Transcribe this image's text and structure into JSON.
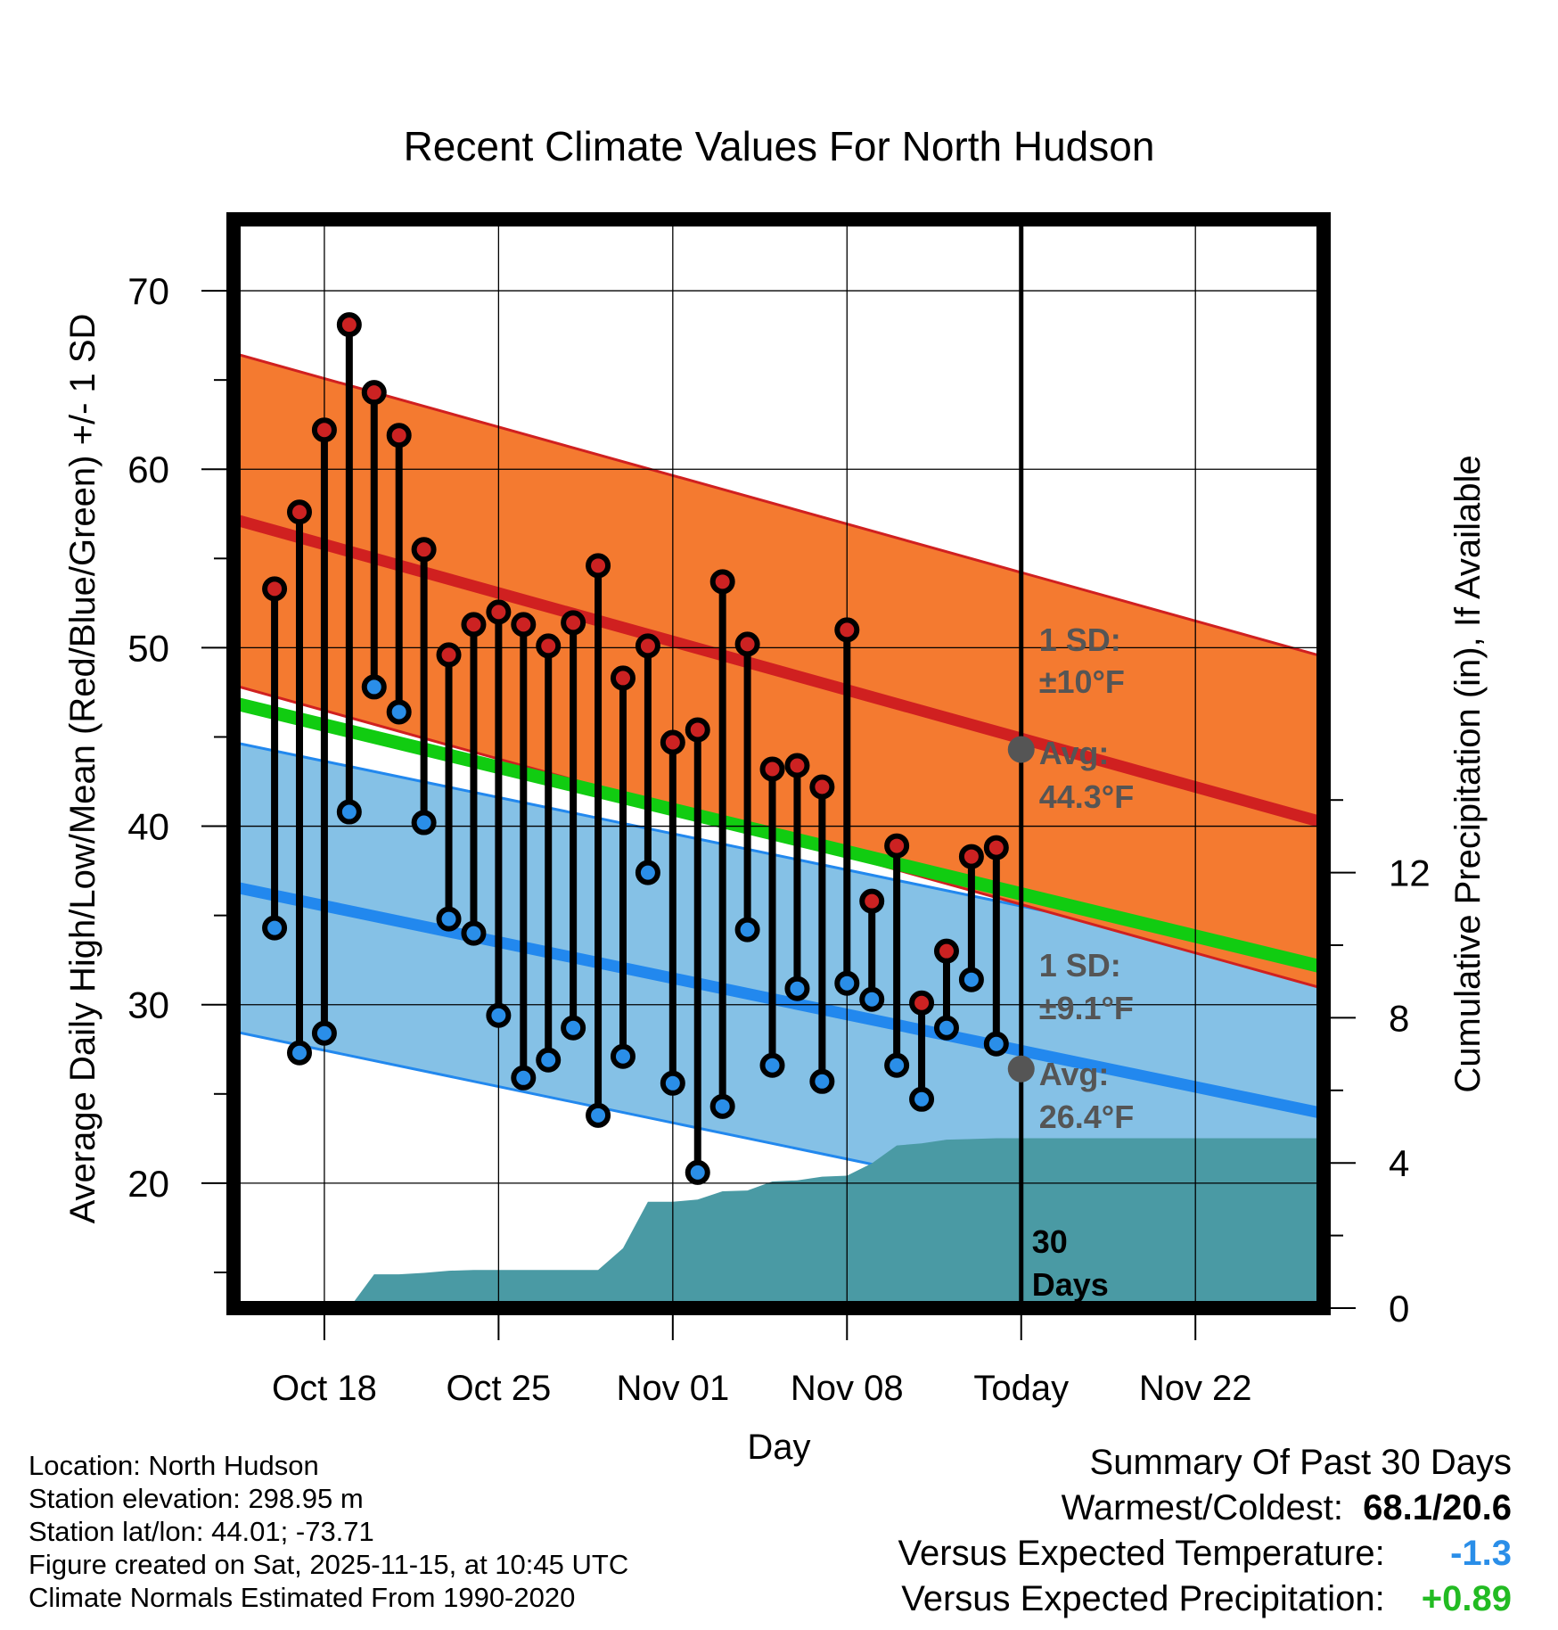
{
  "chart_data": {
    "type": "line",
    "title": "Recent Climate Values For North Hudson",
    "xlabel": "Day",
    "ylabel_left": "Average Daily High/Low/Mean (Red/Blue/Green) +/- 1 SD",
    "ylabel_right": "Cumulative Precipitation (in), If Available",
    "y_left_range": [
      13,
      74
    ],
    "y_right_range": [
      0,
      30
    ],
    "x_range": [
      -0.65,
      43.15
    ],
    "x_ticks": [
      {
        "day": 3,
        "label": "Oct 18"
      },
      {
        "day": 10,
        "label": "Oct 25"
      },
      {
        "day": 17,
        "label": "Nov 01"
      },
      {
        "day": 24,
        "label": "Nov 08"
      },
      {
        "day": 31,
        "label": "Today"
      },
      {
        "day": 38,
        "label": "Nov 22"
      }
    ],
    "y_left_ticks": [
      20,
      30,
      40,
      50,
      60,
      70
    ],
    "y_right_ticks": [
      0,
      4,
      8,
      12
    ],
    "normals": {
      "high_mean": {
        "start": 57.2,
        "end": 40.2
      },
      "high_sd": 9.3,
      "low_mean": {
        "start": 36.6,
        "end": 23.9
      },
      "low_sd": 8.1,
      "mean": {
        "start": 46.9,
        "end": 32.1
      }
    },
    "daily": {
      "days": [
        1,
        2,
        3,
        4,
        5,
        6,
        7,
        8,
        9,
        10,
        11,
        12,
        13,
        14,
        15,
        16,
        17,
        18,
        19,
        20,
        21,
        22,
        23,
        24,
        25,
        26,
        27,
        28,
        29,
        30
      ],
      "highs": [
        53.3,
        57.6,
        62.2,
        68.1,
        64.3,
        61.9,
        55.5,
        49.6,
        51.3,
        52.0,
        51.3,
        50.1,
        51.4,
        54.6,
        48.3,
        50.1,
        44.7,
        45.4,
        53.7,
        50.2,
        43.2,
        43.4,
        42.2,
        51.0,
        35.8,
        38.9,
        30.1,
        33.0,
        38.3,
        38.8
      ],
      "lows": [
        34.3,
        27.3,
        28.4,
        40.8,
        47.8,
        46.4,
        40.2,
        34.8,
        34.0,
        29.4,
        25.9,
        26.9,
        28.7,
        23.8,
        27.1,
        37.4,
        25.6,
        20.6,
        24.3,
        34.2,
        26.6,
        30.9,
        25.7,
        31.2,
        30.3,
        26.6,
        24.7,
        28.7,
        31.4,
        27.8
      ]
    },
    "precipitation": {
      "days": [
        0,
        2,
        3,
        4,
        5,
        6,
        7,
        8,
        9,
        10,
        11,
        12,
        13,
        14,
        15,
        16,
        17,
        18,
        19,
        20,
        21,
        22,
        23,
        24,
        25,
        26,
        27,
        28,
        29,
        30,
        31,
        43.15
      ],
      "cumulative": [
        0,
        0,
        0,
        0,
        0.93,
        0.93,
        0.97,
        1.03,
        1.05,
        1.05,
        1.05,
        1.05,
        1.05,
        1.05,
        1.65,
        2.93,
        2.93,
        2.99,
        3.22,
        3.24,
        3.49,
        3.52,
        3.62,
        3.65,
        3.99,
        4.48,
        4.54,
        4.64,
        4.66,
        4.68,
        4.68,
        4.68
      ]
    },
    "annotations": [
      {
        "text_line1": "1 SD:",
        "text_line2": "±10°F",
        "color": "#555555"
      },
      {
        "text_line1": "Avg:",
        "text_line2": "44.3°F",
        "color": "#555555",
        "marker_value": 44.3
      },
      {
        "text_line1": "1 SD:",
        "text_line2": "±9.1°F",
        "color": "#555555"
      },
      {
        "text_line1": "Avg:",
        "text_line2": "26.4°F",
        "color": "#555555",
        "marker_value": 26.4
      },
      {
        "text_line1": "30",
        "text_line2": "Days",
        "color": "#000000"
      }
    ],
    "colors": {
      "high_band": "#f47a30",
      "high_line": "#d02020",
      "low_band": "#85c1e6",
      "low_line": "#2288ee",
      "mean_line": "#11cc11",
      "precip": "#4a9aa4",
      "high_dot": "#cc2222",
      "low_dot": "#2a8ee8",
      "marker": "#555555"
    }
  },
  "info": {
    "location": "Location: North Hudson",
    "elevation": "Station elevation: 298.95 m",
    "latlon": "Station lat/lon: 44.01; -73.71",
    "created": "Figure created on Sat, 2025-11-15, at 10:45 UTC",
    "normals": "Climate Normals Estimated From 1990-2020"
  },
  "summary": {
    "title": "Summary Of Past 30 Days",
    "warmest_label": "Warmest/Coldest:",
    "warmest_value": "68.1/20.6",
    "temp_label": "Versus Expected Temperature:",
    "temp_value": "-1.3",
    "temp_color": "#2a8ee8",
    "precip_label": "Versus Expected Precipitation:",
    "precip_value": "+0.89",
    "precip_color": "#22bb22"
  }
}
